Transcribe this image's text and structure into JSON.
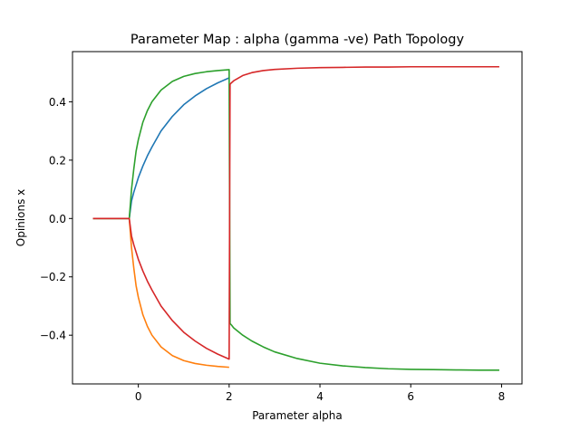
{
  "chart_data": {
    "type": "line",
    "title": "Parameter Map : alpha (gamma -ve) Path Topology",
    "xlabel": "Parameter alpha",
    "ylabel": "Opinions x",
    "xlim": [
      -1.45,
      8.45
    ],
    "ylim": [
      -0.567,
      0.572
    ],
    "x_ticks": [
      0,
      2,
      4,
      6,
      8
    ],
    "x_tick_labels": [
      "0",
      "2",
      "4",
      "6",
      "8"
    ],
    "y_ticks": [
      -0.4,
      -0.2,
      0.0,
      0.2,
      0.4
    ],
    "y_tick_labels": [
      "−0.4",
      "−0.2",
      "0.0",
      "0.2",
      "0.4"
    ],
    "grid": false,
    "series": [
      {
        "color": "#1f77b4",
        "x": [
          -1.0,
          -0.5,
          -0.2,
          -0.15,
          -0.1,
          0.0,
          0.1,
          0.2,
          0.3,
          0.5,
          0.75,
          1.0,
          1.25,
          1.5,
          1.75,
          2.0
        ],
        "y": [
          0.0,
          0.0,
          0.0,
          0.06,
          0.09,
          0.14,
          0.18,
          0.215,
          0.245,
          0.3,
          0.35,
          0.39,
          0.42,
          0.445,
          0.465,
          0.482
        ]
      },
      {
        "color": "#ff7f0e",
        "x": [
          -1.0,
          -0.5,
          -0.2,
          -0.15,
          -0.1,
          -0.05,
          0.0,
          0.1,
          0.2,
          0.3,
          0.5,
          0.75,
          1.0,
          1.25,
          1.5,
          1.75,
          2.0
        ],
        "y": [
          0.0,
          0.0,
          0.0,
          -0.1,
          -0.17,
          -0.23,
          -0.27,
          -0.33,
          -0.37,
          -0.4,
          -0.44,
          -0.47,
          -0.487,
          -0.497,
          -0.503,
          -0.507,
          -0.51
        ]
      },
      {
        "color": "#2ca02c",
        "x": [
          -1.0,
          -0.5,
          -0.2,
          -0.15,
          -0.1,
          -0.05,
          0.0,
          0.1,
          0.2,
          0.3,
          0.5,
          0.75,
          1.0,
          1.25,
          1.5,
          1.75,
          2.0,
          2.0,
          2.02,
          2.05,
          2.1,
          2.3,
          2.5,
          2.75,
          3.0,
          3.5,
          4.0,
          4.5,
          5.0,
          5.5,
          6.0,
          6.5,
          7.0,
          7.5,
          7.95
        ],
        "y": [
          0.0,
          0.0,
          0.0,
          0.1,
          0.17,
          0.23,
          0.27,
          0.33,
          0.37,
          0.4,
          0.44,
          0.47,
          0.487,
          0.497,
          0.503,
          0.507,
          0.51,
          0.51,
          -0.36,
          -0.365,
          -0.375,
          -0.4,
          -0.42,
          -0.44,
          -0.457,
          -0.48,
          -0.496,
          -0.505,
          -0.511,
          -0.515,
          -0.517,
          -0.518,
          -0.519,
          -0.52,
          -0.52
        ]
      },
      {
        "color": "#d62728",
        "x": [
          -1.0,
          -0.5,
          -0.2,
          -0.15,
          -0.1,
          0.0,
          0.1,
          0.2,
          0.3,
          0.5,
          0.75,
          1.0,
          1.25,
          1.5,
          1.75,
          2.0,
          2.0,
          2.02,
          2.05,
          2.1,
          2.3,
          2.5,
          2.75,
          3.0,
          3.5,
          4.0,
          4.5,
          5.0,
          5.5,
          6.0,
          6.5,
          7.0,
          7.5,
          7.95
        ],
        "y": [
          0.0,
          0.0,
          0.0,
          -0.06,
          -0.09,
          -0.14,
          -0.18,
          -0.215,
          -0.245,
          -0.3,
          -0.35,
          -0.39,
          -0.42,
          -0.445,
          -0.465,
          -0.482,
          -0.482,
          0.46,
          0.465,
          0.472,
          0.49,
          0.5,
          0.507,
          0.511,
          0.515,
          0.517,
          0.518,
          0.519,
          0.519,
          0.52,
          0.52,
          0.52,
          0.52,
          0.52
        ]
      }
    ]
  }
}
